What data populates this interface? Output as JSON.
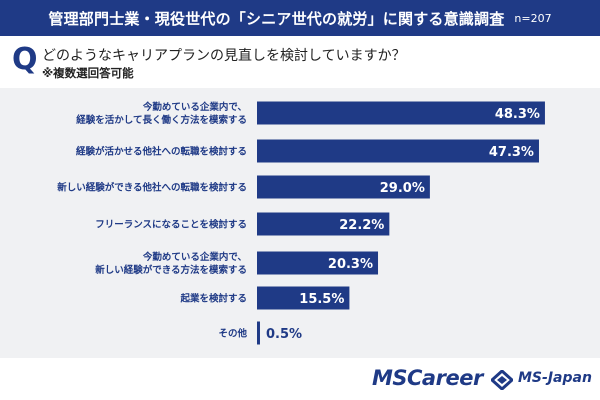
{
  "header": {
    "title": "管理部門士業・現役世代の「シニア世代の就労」に関する意識調査",
    "sample_size": "n=207"
  },
  "question": {
    "mark": "Q",
    "text": "どのようなキャリアプランの見直しを検討していますか？",
    "note": "※複数選回答可能"
  },
  "chart_data": {
    "type": "bar",
    "orientation": "horizontal",
    "categories": [
      [
        "今勤めている企業内で、",
        "経験を活かして長く働く方法を模索する"
      ],
      [
        "経験が活かせる他社への転職を検討する"
      ],
      [
        "新しい経験ができる他社への転職を検討する"
      ],
      [
        "フリーランスになることを検討する"
      ],
      [
        "今勤めている企業内で、",
        "新しい経験ができる方法を模索する"
      ],
      [
        "起業を検討する"
      ],
      [
        "その他"
      ]
    ],
    "values": [
      48.3,
      47.3,
      29.0,
      22.2,
      20.3,
      15.5,
      0.5
    ],
    "value_labels": [
      "48.3%",
      "47.3%",
      "29.0%",
      "22.2%",
      "20.3%",
      "15.5%",
      "0.5%"
    ],
    "unit": "%",
    "xlim": [
      0,
      52
    ],
    "bar_color": "#1f3a86",
    "grid": false,
    "legend": "none"
  },
  "footer": {
    "logo_mscareer": "MSCareer",
    "logo_msjapan": "MS-Japan"
  },
  "colors": {
    "brand": "#1f3a86",
    "panel": "#f0f1f3",
    "label_text": "#1f3a86"
  }
}
